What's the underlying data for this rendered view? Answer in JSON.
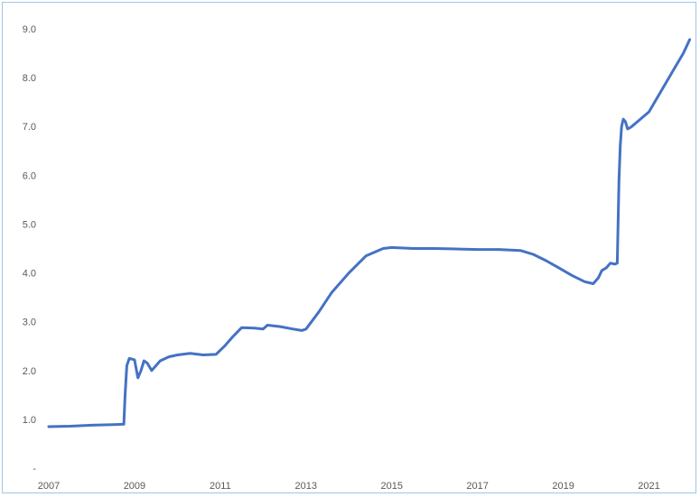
{
  "chart_data": {
    "type": "line",
    "title": "",
    "xlabel": "",
    "ylabel": "",
    "xlim": [
      2007.0,
      2022.0
    ],
    "ylim": [
      0.0,
      9.0
    ],
    "x_ticks": [
      "2007",
      "2009",
      "2011",
      "2013",
      "2015",
      "2017",
      "2019",
      "2021"
    ],
    "y_ticks": [
      "-",
      "1.0",
      "2.0",
      "3.0",
      "4.0",
      "5.0",
      "6.0",
      "7.0",
      "8.0",
      "9.0"
    ],
    "grid": false,
    "legend": "none",
    "line_color": "#4472c4",
    "series": [
      {
        "x": [
          2007.0,
          2007.5,
          2008.0,
          2008.5,
          2008.75,
          2008.78,
          2008.82,
          2008.88,
          2009.0,
          2009.08,
          2009.15,
          2009.22,
          2009.3,
          2009.4,
          2009.5,
          2009.6,
          2009.8,
          2010.0,
          2010.3,
          2010.6,
          2010.9,
          2011.1,
          2011.3,
          2011.5,
          2011.8,
          2012.0,
          2012.1,
          2012.2,
          2012.4,
          2012.7,
          2012.9,
          2013.0,
          2013.3,
          2013.6,
          2014.0,
          2014.4,
          2014.8,
          2015.0,
          2015.5,
          2016.0,
          2016.5,
          2017.0,
          2017.5,
          2018.0,
          2018.3,
          2018.6,
          2018.9,
          2019.2,
          2019.5,
          2019.7,
          2019.82,
          2019.9,
          2020.0,
          2020.1,
          2020.2,
          2020.26,
          2020.3,
          2020.33,
          2020.36,
          2020.4,
          2020.45,
          2020.5,
          2020.55,
          2020.6,
          2020.8,
          2021.0,
          2021.2,
          2021.4,
          2021.6,
          2021.8,
          2021.95
        ],
        "y": [
          0.85,
          0.86,
          0.88,
          0.89,
          0.9,
          1.5,
          2.1,
          2.25,
          2.22,
          1.85,
          2.0,
          2.2,
          2.15,
          2.0,
          2.1,
          2.2,
          2.28,
          2.32,
          2.35,
          2.32,
          2.33,
          2.5,
          2.7,
          2.88,
          2.87,
          2.85,
          2.93,
          2.92,
          2.9,
          2.85,
          2.82,
          2.85,
          3.2,
          3.6,
          4.0,
          4.35,
          4.5,
          4.52,
          4.5,
          4.5,
          4.49,
          4.48,
          4.48,
          4.46,
          4.38,
          4.25,
          4.1,
          3.95,
          3.82,
          3.78,
          3.9,
          4.05,
          4.1,
          4.2,
          4.18,
          4.2,
          5.9,
          6.6,
          7.0,
          7.15,
          7.1,
          6.95,
          6.97,
          7.0,
          7.15,
          7.3,
          7.6,
          7.9,
          8.2,
          8.5,
          8.78
        ]
      }
    ]
  }
}
